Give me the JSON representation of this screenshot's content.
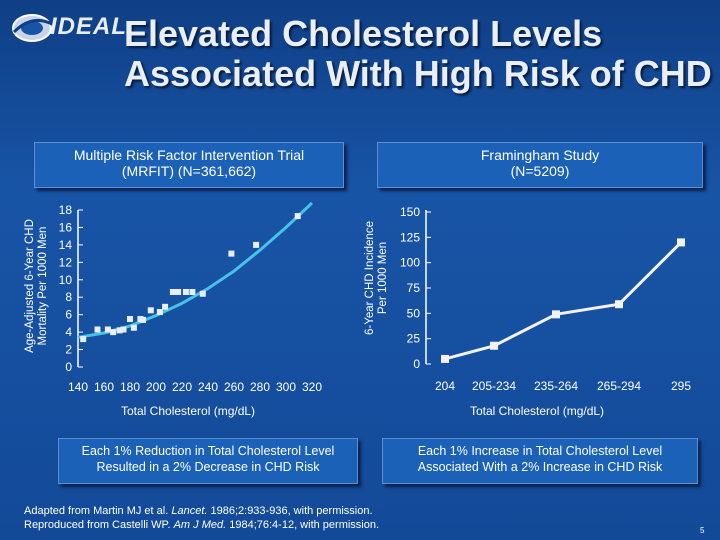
{
  "header": {
    "logo_text": "IDEAL",
    "title_line1": "Elevated Cholesterol Levels",
    "title_line2": "Associated With High Risk of CHD"
  },
  "left_panel": {
    "heading_line1": "Multiple Risk Factor Intervention Trial",
    "heading_line2": "(MRFIT) (N=361,662)",
    "ylabel_line1": "Age-Adjusted 6-Year CHD",
    "ylabel_line2": "Mortality Per 1000 Men",
    "xlabel": "Total Cholesterol (mg/dL)",
    "note_line1": "Each 1% Reduction in Total Cholesterol Level",
    "note_line2": "Resulted in a 2% Decrease in CHD Risk"
  },
  "right_panel": {
    "heading_line1": "Framingham Study",
    "heading_line2": "(N=5209)",
    "ylabel_line1": "6-Year CHD Incidence",
    "ylabel_line2": "Per 1000 Men",
    "xlabel": "Total Cholesterol (mg/dL)",
    "note_line1": "Each 1% Increase in Total Cholesterol Level",
    "note_line2": "Associated With a 2% Increase in CHD Risk"
  },
  "footer": {
    "line1_pre": "Adapted from Martin MJ et al. ",
    "line1_journal": "Lancet.",
    "line1_post": " 1986;2:933-936, with permission.",
    "line2_pre": "Reproduced from Castelli WP. ",
    "line2_journal": "Am J Med.",
    "line2_post": " 1984;76:4-12, with permission.",
    "page_number": "5"
  },
  "colors": {
    "background": "#1854a6",
    "curve": "#46c3e6",
    "points": "#e8eef8"
  },
  "chart_data": [
    {
      "type": "scatter",
      "title": "Multiple Risk Factor Intervention Trial (MRFIT) (N=361,662)",
      "xlabel": "Total Cholesterol (mg/dL)",
      "ylabel": "Age-Adjusted 6-Year CHD Mortality Per 1000 Men",
      "xlim": [
        140,
        320
      ],
      "ylim": [
        0,
        18
      ],
      "x_ticks": [
        "140",
        "160",
        "180",
        "200",
        "220",
        "240",
        "260",
        "280",
        "300",
        "320"
      ],
      "y_ticks": [
        "0",
        "2",
        "4",
        "6",
        "8",
        "10",
        "12",
        "14",
        "16",
        "18"
      ],
      "grid": false,
      "x": [
        144,
        155,
        163,
        167,
        172,
        175,
        180,
        183,
        188,
        190,
        196,
        203,
        207,
        213,
        217,
        223,
        228,
        236,
        258,
        277,
        309
      ],
      "y": [
        3.2,
        4.3,
        4.3,
        4.0,
        4.2,
        4.3,
        5.5,
        4.5,
        5.5,
        5.4,
        6.5,
        6.3,
        6.9,
        8.6,
        8.6,
        8.6,
        8.6,
        8.4,
        13.0,
        14.0,
        17.3
      ],
      "trend": {
        "x": [
          140,
          160,
          180,
          200,
          220,
          240,
          260,
          280,
          300,
          320
        ],
        "y": [
          3.4,
          3.9,
          4.7,
          5.9,
          7.3,
          9.0,
          11.0,
          13.4,
          16.0,
          18.8
        ]
      }
    },
    {
      "type": "line",
      "title": "Framingham Study (N=5209)",
      "xlabel": "Total Cholesterol (mg/dL)",
      "ylabel": "6-Year CHD Incidence Per 1000 Men",
      "categories": [
        "204",
        "205-234",
        "235-264",
        "265-294",
        "295"
      ],
      "values": [
        5,
        18,
        49,
        59,
        120
      ],
      "ylim": [
        0,
        150
      ],
      "y_ticks": [
        "0",
        "25",
        "50",
        "75",
        "100",
        "125",
        "150"
      ],
      "grid": false
    }
  ]
}
